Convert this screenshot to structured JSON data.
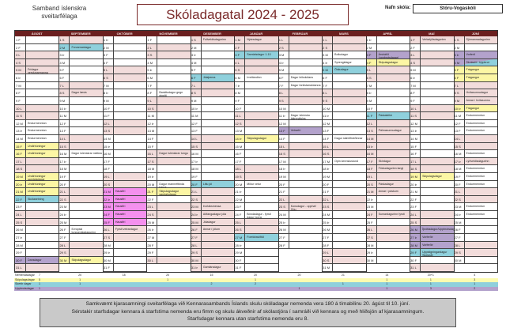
{
  "header": {
    "org_line1": "Samband íslenskra",
    "org_line2": "sveitarfélaga",
    "title": "Skóladagatal 2024 - 2025",
    "school_label": "Nafn skóla:",
    "school_name": "Stóru-Vogaskóli"
  },
  "weekday_letters": [
    "S",
    "M",
    "Þ",
    "M",
    "F",
    "F",
    "L"
  ],
  "colors": {
    "header": "#6b1f1f",
    "holiday": "#f2dcdb",
    "skipulag": "#fcf6a4",
    "skertur": "#8fd0dc",
    "uppbrot": "#b3a2cc",
    "fri": "#f490ee"
  },
  "months": [
    {
      "name": "ÁGÚST",
      "year": 2024,
      "month": 8,
      "events": {
        "5": {
          "text": "Frídagur verslunarmanna",
          "type": "holiday"
        },
        "12": {
          "text": "Endurmenntun"
        },
        "13": {
          "text": "Endurmenntun"
        },
        "14": {
          "text": "Endurmenntun"
        },
        "15": {
          "text": "Undirbúningur",
          "type": "skipulag"
        },
        "16": {
          "text": "Undirbúningur",
          "type": "skipulag"
        },
        "19": {
          "text": "Undirbúningur samtalsdagar Skólasetning",
          "type": "skipulag"
        },
        "20": {
          "text": "Undirbúningur",
          "type": "skipulag"
        },
        "21": {
          "text": "Undirbúningur",
          "type": "skipulag"
        },
        "22": {
          "text": "Skólasetning",
          "type": "skertur"
        },
        "30": {
          "text": "Dansdagur",
          "type": "uppbrot"
        }
      }
    },
    {
      "name": "SEPTEMBER",
      "year": 2024,
      "month": 9,
      "events": {
        "2": {
          "text": "Forvarnardagur",
          "type": "skertur"
        },
        "8": {
          "text": "Dagur læsis"
        },
        "16": {
          "text": "Dagur íslenskrar náttúru"
        },
        "26": {
          "text": "Evrópski tungumáladagurinn"
        },
        "30": {
          "text": "Skipulagsdagur",
          "type": "skipulag"
        }
      }
    },
    {
      "name": "OKTÓBER",
      "year": 2024,
      "month": 10,
      "events": {
        "21": {
          "text": "Haustfrí",
          "type": "fri"
        },
        "22": {
          "text": "Haustfrí",
          "type": "fri"
        },
        "23": {
          "text": "Haustfrí",
          "type": "fri"
        },
        "24": {
          "text": "Haustfrí",
          "type": "fri"
        },
        "25": {
          "text": "Haustfrí",
          "type": "fri"
        },
        "26": {
          "text": "Fyrsti vetrardagur"
        }
      }
    },
    {
      "name": "NÓVEMBER",
      "year": 2024,
      "month": 11,
      "events": {
        "8": {
          "text": "Baráttudagur gegn einelti"
        },
        "16": {
          "text": "Dagur íslenskrar tungu"
        },
        "20": {
          "text": "Dagur mannréttinda barna"
        },
        "21": {
          "text": "Skipulagsdagur samtalsdagar Nemendaþing",
          "type": "skipulag"
        }
      }
    },
    {
      "name": "DESEMBER",
      "year": 2024,
      "month": 12,
      "events": {
        "1": {
          "text": "Fullveldisdagurinn"
        },
        "6": {
          "text": "Jólaþema",
          "type": "skertur"
        },
        "20": {
          "text": "Litlu jól",
          "type": "skertur"
        },
        "23": {
          "text": "Þorláksmessa",
          "type": "holiday"
        },
        "24": {
          "text": "Aðfangadagur jóla",
          "type": "holiday"
        },
        "25": {
          "text": "Jóladagur",
          "type": "holiday"
        },
        "26": {
          "text": "Annar í jólum",
          "type": "holiday"
        },
        "27": {
          "text": "",
          "type": "holiday"
        },
        "30": {
          "text": "",
          "type": "holiday"
        },
        "31": {
          "text": "Gamlársdagur",
          "type": "holiday"
        }
      }
    },
    {
      "name": "JANÚAR",
      "year": 2025,
      "month": 1,
      "events": {
        "1": {
          "text": "Nýársdagur",
          "type": "holiday"
        },
        "2": {
          "text": "",
          "type": "holiday"
        },
        "3": {
          "text": "Samtalsdagur 1-10",
          "type": "skertur"
        },
        "6": {
          "text": "Þrettándinn"
        },
        "14": {
          "text": "Skipulagsdagur",
          "type": "skipulag"
        },
        "20": {
          "text": "Miður vetur"
        },
        "24": {
          "text": "Bóndadagur - fyrsti dagur þorra"
        },
        "27": {
          "text": "Foreldraviðtöl",
          "type": "skertur"
        }
      }
    },
    {
      "name": "FEBRÚAR",
      "year": 2025,
      "month": 2,
      "events": {
        "6": {
          "text": "Dagur leikskólans"
        },
        "7": {
          "text": "Dagur tónlistarskólanna"
        },
        "11": {
          "text": "Dagur íslenska táknmálsins"
        },
        "13": {
          "text": "Vetrarfrí",
          "type": "uppbrot"
        },
        "23": {
          "text": "Konudagur - upphaf Góu"
        }
      }
    },
    {
      "name": "MARS",
      "year": 2025,
      "month": 3,
      "events": {
        "3": {
          "text": "Bolludagur"
        },
        "4": {
          "text": "Sprengidagur"
        },
        "5": {
          "text": "Öskudagur",
          "type": "skertur"
        },
        "14": {
          "text": "Dagur stærðfræðinnar"
        },
        "17": {
          "text": "Opin kennslustund"
        }
      }
    },
    {
      "name": "APRÍL",
      "year": 2025,
      "month": 4,
      "events": {
        "3": {
          "text": "Árshátíð (uppbrotsdagar)",
          "type": "uppbrot"
        },
        "4": {
          "text": "Skipulagsdagur",
          "type": "skipulag"
        },
        "11": {
          "text": "Páskaleikir",
          "type": "skertur"
        },
        "13": {
          "text": "Pálmasunnudagur"
        },
        "14": {
          "text": "",
          "type": "holiday"
        },
        "15": {
          "text": "",
          "type": "holiday"
        },
        "16": {
          "text": "",
          "type": "holiday"
        },
        "17": {
          "text": "Skírdagur",
          "type": "holiday"
        },
        "18": {
          "text": "Föstudagurinn langi",
          "type": "holiday"
        },
        "20": {
          "text": "Páskadagur",
          "type": "holiday"
        },
        "21": {
          "text": "Annar í páskum",
          "type": "holiday"
        },
        "24": {
          "text": "Sumardagurinn fyrsti",
          "type": "holiday"
        }
      }
    },
    {
      "name": "MAÍ",
      "year": 2025,
      "month": 5,
      "events": {
        "1": {
          "text": "Verkalýðsdagurinn",
          "type": "holiday"
        },
        "19": {
          "text": "Skipulagsdagur",
          "type": "skipulag"
        },
        "26": {
          "text": "Íþróttadagur/Uppbrotsdagur",
          "type": "uppbrot"
        },
        "27": {
          "text": "Vorferðir",
          "type": "uppbrot"
        },
        "28": {
          "text": "Vorferðir",
          "type": "uppbrot"
        },
        "29": {
          "text": "Uppstigningardagur Skólaslit",
          "type": "skertur"
        }
      }
    },
    {
      "name": "JÚNÍ",
      "year": 2025,
      "month": 6,
      "events": {
        "1": {
          "text": "Sjómannadagurinn"
        },
        "3": {
          "text": "Vorferð",
          "type": "uppbrot"
        },
        "4": {
          "text": "Skólaslit / Uppbrot",
          "type": "split"
        },
        "5": {
          "text": "Frágangur",
          "type": "skipulag"
        },
        "6": {
          "text": "Frágangur",
          "type": "skipulag"
        },
        "8": {
          "text": "Hvítasunnudagur"
        },
        "9": {
          "text": "Annar í hvítasunnu",
          "type": "holiday"
        },
        "10": {
          "text": "Frágangur",
          "type": "skipulag"
        },
        "11": {
          "text": "Endurmenntun"
        },
        "12": {
          "text": "Endurmenntun"
        },
        "13": {
          "text": "Endurmenntun"
        },
        "16": {
          "text": "Endurmenntun"
        },
        "17": {
          "text": "Lýðveldisdagurinn",
          "type": "holiday"
        },
        "18": {
          "text": "Endurmenntun"
        },
        "19": {
          "text": "Endurmenntun"
        },
        "20": {
          "text": "Endurmenntun"
        },
        "23": {
          "text": "Endurmenntun"
        },
        "24": {
          "text": "Endurmenntun"
        }
      }
    }
  ],
  "summary": [
    {
      "label": "Nemendadagar",
      "color": "#ffffff",
      "values": [
        "7",
        "20",
        "18",
        "20",
        "15",
        "20",
        "20",
        "21",
        "14",
        "20+1",
        "4"
      ]
    },
    {
      "label": "Skipulagsdagar",
      "color": "#fdfbb0",
      "values": [
        "5",
        "1",
        "",
        "1",
        "",
        "1",
        "",
        "",
        "1",
        "1",
        "3"
      ]
    },
    {
      "label": "Skertir dagar",
      "color": "#8fd0dc",
      "values": [
        "1",
        "1",
        "",
        "",
        "2",
        "2",
        "",
        "1",
        "1",
        "1",
        "1"
      ]
    },
    {
      "label": "Uppbrotsdagar",
      "color": "#b3a2cc",
      "values": [
        "1",
        "",
        "",
        "",
        "",
        "",
        "1",
        "",
        "1",
        "3",
        "2"
      ]
    }
  ],
  "note": {
    "line1": "Samkvæmt kjarasamningi sveitarfélaga við Kennarasambands Íslands skulu skóladagar nemenda vera 180 á tímabilinu 20. ágúst til 10. júní.",
    "line2": "Sérstakir starfsdagar kennara á starfstíma nemenda eru fimm og skulu ákveðnir af skólastjóra í samráði við kennara og með hliðsjón af kjarasamningum.",
    "line3": "Starfsdagar kennara utan starfstíma nemenda eru 8."
  }
}
